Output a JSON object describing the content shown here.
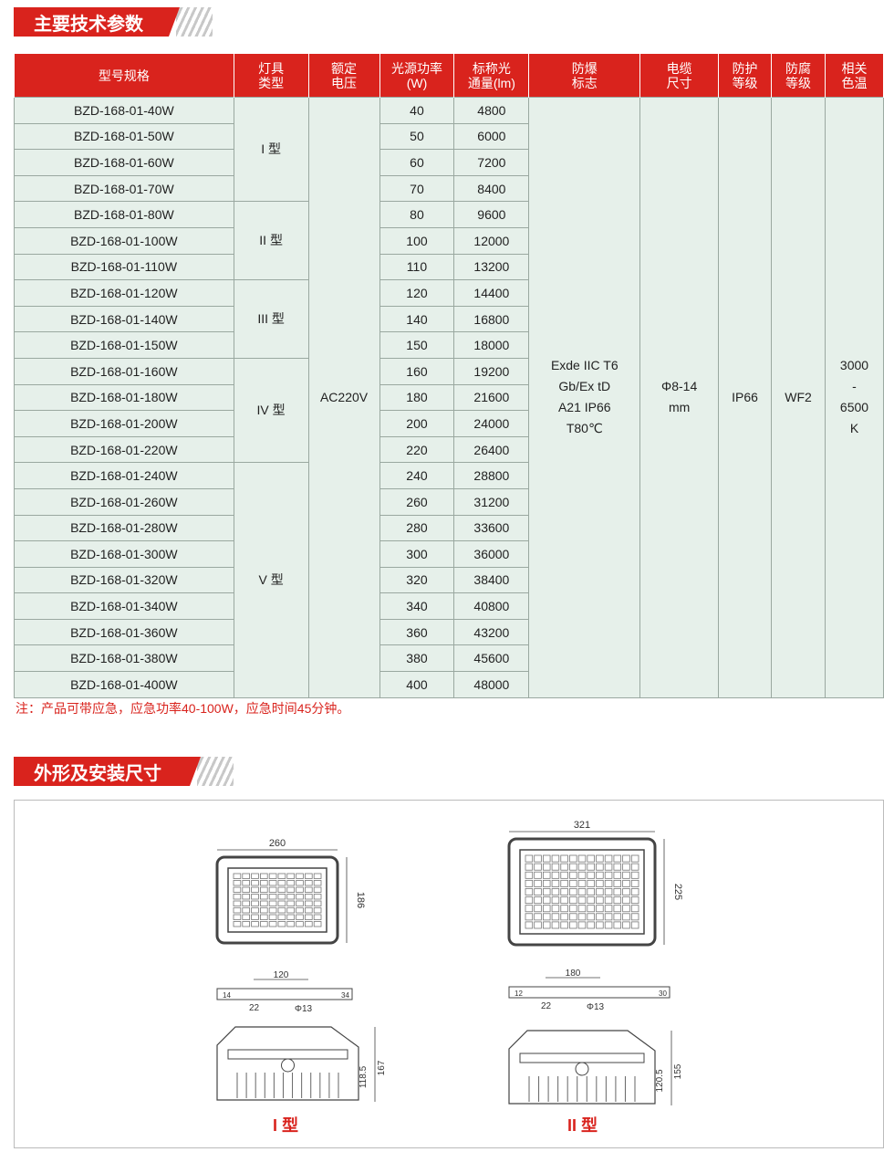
{
  "section1_title": "主要技术参数",
  "section2_title": "外形及安装尺寸",
  "headers": [
    "型号规格",
    "灯具\n类型",
    "额定\n电压",
    "光源功率\n(W)",
    "标称光\n通量(lm)",
    "防爆\n标志",
    "电缆\n尺寸",
    "防护\n等级",
    "防腐\n等级",
    "相关\n色温"
  ],
  "rows": [
    [
      "BZD-168-01-40W",
      "40",
      "4800"
    ],
    [
      "BZD-168-01-50W",
      "50",
      "6000"
    ],
    [
      "BZD-168-01-60W",
      "60",
      "7200"
    ],
    [
      "BZD-168-01-70W",
      "70",
      "8400"
    ],
    [
      "BZD-168-01-80W",
      "80",
      "9600"
    ],
    [
      "BZD-168-01-100W",
      "100",
      "12000"
    ],
    [
      "BZD-168-01-110W",
      "110",
      "13200"
    ],
    [
      "BZD-168-01-120W",
      "120",
      "14400"
    ],
    [
      "BZD-168-01-140W",
      "140",
      "16800"
    ],
    [
      "BZD-168-01-150W",
      "150",
      "18000"
    ],
    [
      "BZD-168-01-160W",
      "160",
      "19200"
    ],
    [
      "BZD-168-01-180W",
      "180",
      "21600"
    ],
    [
      "BZD-168-01-200W",
      "200",
      "24000"
    ],
    [
      "BZD-168-01-220W",
      "220",
      "26400"
    ],
    [
      "BZD-168-01-240W",
      "240",
      "28800"
    ],
    [
      "BZD-168-01-260W",
      "260",
      "31200"
    ],
    [
      "BZD-168-01-280W",
      "280",
      "33600"
    ],
    [
      "BZD-168-01-300W",
      "300",
      "36000"
    ],
    [
      "BZD-168-01-320W",
      "320",
      "38400"
    ],
    [
      "BZD-168-01-340W",
      "340",
      "40800"
    ],
    [
      "BZD-168-01-360W",
      "360",
      "43200"
    ],
    [
      "BZD-168-01-380W",
      "380",
      "45600"
    ],
    [
      "BZD-168-01-400W",
      "400",
      "48000"
    ]
  ],
  "types": [
    {
      "label": "I 型",
      "span": 4
    },
    {
      "label": "II 型",
      "span": 3
    },
    {
      "label": "III 型",
      "span": 3
    },
    {
      "label": "IV 型",
      "span": 4
    },
    {
      "label": "V 型",
      "span": 9
    }
  ],
  "voltage": "AC220V",
  "ex_mark": "Exde IIC T6\nGb/Ex tD\nA21 IP66\nT80℃",
  "cable": "Φ8-14\nmm",
  "ip": "IP66",
  "anticorrosion": "WF2",
  "color_temp": "3000\n-\n6500\nK",
  "note": "注：产品可带应急，应急功率40-100W，应急时间45分钟。",
  "drawings": [
    {
      "label": "I 型",
      "width": "260",
      "height": "186",
      "mount_spacing": "120",
      "slot": "22",
      "hole": "Φ13",
      "bracket_a": "14",
      "bracket_b": "34",
      "side_h1": "118.5",
      "side_h2": "167"
    },
    {
      "label": "II 型",
      "width": "321",
      "height": "225",
      "mount_spacing": "180",
      "slot": "22",
      "hole": "Φ13",
      "bracket_a": "12",
      "bracket_b": "30",
      "side_h1": "120.5",
      "side_h2": "155"
    }
  ],
  "colors": {
    "accent": "#d9231d",
    "row_bg": "#e6f0ea"
  }
}
